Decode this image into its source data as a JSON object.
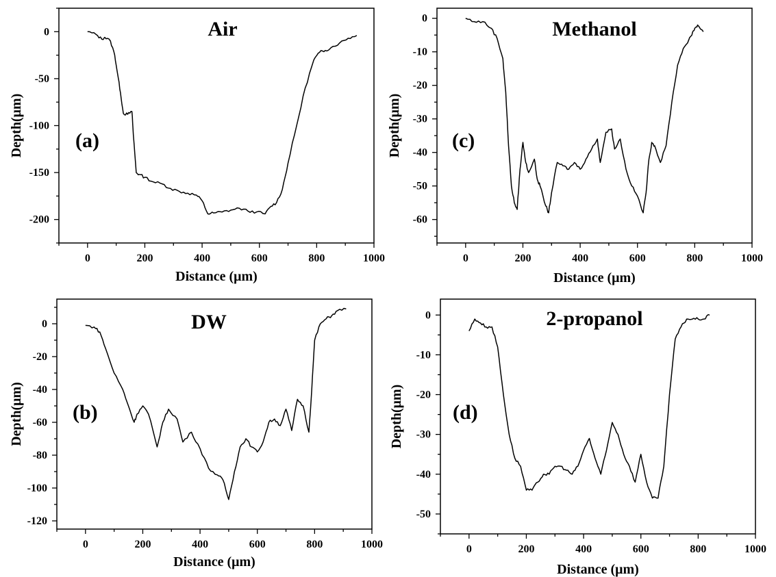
{
  "chart_data": [
    {
      "id": "a",
      "type": "line",
      "title": "Air",
      "panel_tag": "(a)",
      "xlabel": "Distance (μm)",
      "ylabel": "Depth(μm)",
      "xlim": [
        -100,
        1000
      ],
      "ylim": [
        -225,
        25
      ],
      "xticks": [
        0,
        200,
        400,
        600,
        800,
        1000
      ],
      "yticks": [
        0,
        -50,
        -100,
        -150,
        -200
      ],
      "x": [
        0,
        30,
        50,
        60,
        80,
        95,
        105,
        115,
        125,
        140,
        155,
        160,
        170,
        180,
        200,
        230,
        260,
        290,
        320,
        350,
        380,
        400,
        420,
        440,
        470,
        500,
        530,
        560,
        590,
        620,
        640,
        660,
        680,
        700,
        730,
        760,
        790,
        810,
        830,
        850,
        880,
        910,
        940
      ],
      "y": [
        0,
        -3,
        -8,
        -6,
        -10,
        -25,
        -45,
        -65,
        -87,
        -88,
        -85,
        -110,
        -150,
        -152,
        -155,
        -160,
        -162,
        -167,
        -170,
        -172,
        -174,
        -180,
        -194,
        -193,
        -192,
        -190,
        -188,
        -191,
        -192,
        -194,
        -186,
        -182,
        -168,
        -140,
        -100,
        -60,
        -30,
        -22,
        -20,
        -17,
        -12,
        -7,
        -4
      ]
    },
    {
      "id": "b",
      "type": "line",
      "title": "DW",
      "panel_tag": "(b)",
      "xlabel": "Distance (μm)",
      "ylabel": "Depth(μm)",
      "xlim": [
        -100,
        1000
      ],
      "ylim": [
        -125,
        15
      ],
      "xticks": [
        0,
        200,
        400,
        600,
        800,
        1000
      ],
      "yticks": [
        0,
        -20,
        -40,
        -60,
        -80,
        -100,
        -120
      ],
      "x": [
        0,
        30,
        50,
        70,
        100,
        130,
        150,
        170,
        180,
        200,
        220,
        250,
        270,
        290,
        320,
        340,
        370,
        400,
        430,
        460,
        480,
        500,
        520,
        540,
        560,
        580,
        600,
        620,
        640,
        660,
        680,
        700,
        720,
        740,
        760,
        780,
        790,
        800,
        820,
        840,
        860,
        880,
        910
      ],
      "y": [
        -1,
        -2,
        -5,
        -15,
        -30,
        -40,
        -50,
        -60,
        -55,
        -50,
        -55,
        -75,
        -60,
        -52,
        -58,
        -72,
        -66,
        -76,
        -88,
        -92,
        -95,
        -107,
        -90,
        -75,
        -70,
        -75,
        -78,
        -72,
        -60,
        -58,
        -62,
        -52,
        -65,
        -46,
        -50,
        -66,
        -40,
        -10,
        0,
        3,
        5,
        8,
        9
      ]
    },
    {
      "id": "c",
      "type": "line",
      "title": "Methanol",
      "panel_tag": "(c)",
      "xlabel": "Distance (μm)",
      "ylabel": "Depth(μm)",
      "xlim": [
        -100,
        1000
      ],
      "ylim": [
        -67,
        3
      ],
      "xticks": [
        0,
        200,
        400,
        600,
        800,
        1000
      ],
      "yticks": [
        0,
        -10,
        -20,
        -30,
        -40,
        -50,
        -60
      ],
      "x": [
        0,
        30,
        60,
        90,
        110,
        130,
        140,
        150,
        160,
        170,
        180,
        190,
        200,
        210,
        220,
        240,
        250,
        260,
        280,
        290,
        300,
        320,
        340,
        360,
        380,
        400,
        420,
        440,
        460,
        470,
        490,
        510,
        520,
        540,
        560,
        580,
        600,
        620,
        630,
        640,
        650,
        660,
        680,
        700,
        720,
        740,
        760,
        790,
        800,
        810,
        830
      ],
      "y": [
        0,
        -1,
        -1,
        -3,
        -6,
        -12,
        -22,
        -38,
        -50,
        -55,
        -57,
        -45,
        -37,
        -43,
        -46,
        -42,
        -48,
        -50,
        -56,
        -58,
        -52,
        -43,
        -44,
        -45,
        -43,
        -45,
        -42,
        -39,
        -36,
        -43,
        -34,
        -33,
        -39,
        -36,
        -45,
        -50,
        -53,
        -58,
        -52,
        -42,
        -37,
        -38,
        -43,
        -38,
        -25,
        -14,
        -9,
        -5,
        -3,
        -2,
        -4
      ]
    },
    {
      "id": "d",
      "type": "line",
      "title": "2-propanol",
      "panel_tag": "(d)",
      "xlabel": "Distance (μm)",
      "ylabel": "Depth(μm)",
      "xlim": [
        -100,
        1000
      ],
      "ylim": [
        -55,
        4
      ],
      "xticks": [
        0,
        200,
        400,
        600,
        800,
        1000
      ],
      "yticks": [
        0,
        -10,
        -20,
        -30,
        -40,
        -50
      ],
      "x": [
        0,
        20,
        40,
        60,
        80,
        100,
        120,
        140,
        160,
        180,
        200,
        220,
        240,
        260,
        280,
        300,
        320,
        340,
        360,
        380,
        400,
        420,
        440,
        460,
        480,
        500,
        520,
        540,
        560,
        580,
        600,
        620,
        640,
        660,
        680,
        700,
        720,
        740,
        760,
        780,
        800,
        820,
        840
      ],
      "y": [
        -4,
        -1,
        -2,
        -3,
        -3,
        -8,
        -20,
        -30,
        -36,
        -38,
        -44,
        -44,
        -42,
        -40,
        -40,
        -38,
        -38,
        -39,
        -40,
        -38,
        -34,
        -31,
        -36,
        -40,
        -34,
        -27,
        -30,
        -35,
        -38,
        -42,
        -35,
        -42,
        -46,
        -46,
        -38,
        -20,
        -6,
        -3,
        -1,
        -1,
        -1,
        -1,
        0
      ]
    }
  ]
}
